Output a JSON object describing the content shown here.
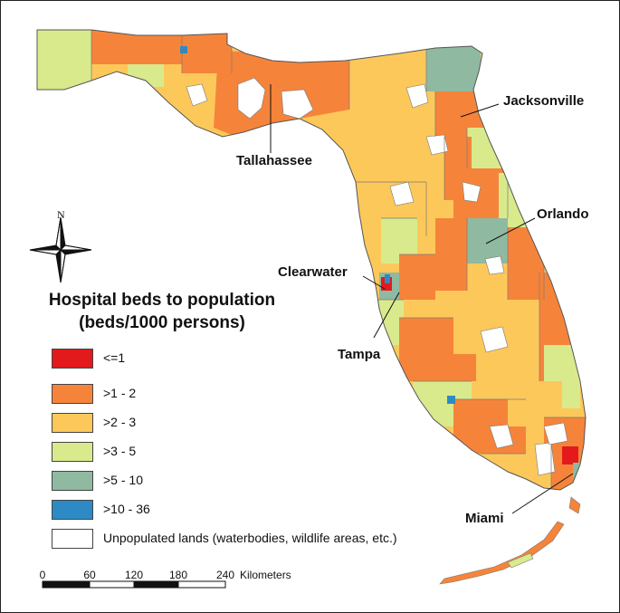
{
  "legend": {
    "title_line1": "Hospital beds to population",
    "title_line2": "(beds/1000 persons)",
    "classes": [
      {
        "label": "<=1",
        "color": "#e31a1c"
      },
      {
        "label": ">1 - 2",
        "color": "#f5843a"
      },
      {
        "label": ">2 - 3",
        "color": "#fdc85a"
      },
      {
        "label": ">3 - 5",
        "color": "#d9ea8c"
      },
      {
        "label": ">5 - 10",
        "color": "#8fb9a0"
      },
      {
        "label": ">10 - 36",
        "color": "#2d8ac4"
      },
      {
        "label": "Unpopulated lands (waterbodies, wildlife areas, etc.)",
        "color": "#ffffff"
      }
    ]
  },
  "cities": [
    "Jacksonville",
    "Tallahassee",
    "Orlando",
    "Clearwater",
    "Tampa",
    "Miami"
  ],
  "north_arrow": {
    "label": "N",
    "icon": "compass-star-icon"
  },
  "scale_bar": {
    "ticks": [
      "0",
      "60",
      "120",
      "180",
      "240"
    ],
    "unit": "Kilometers"
  },
  "colors": {
    "frame": "#222222",
    "boundary": "#7a7a7a"
  }
}
